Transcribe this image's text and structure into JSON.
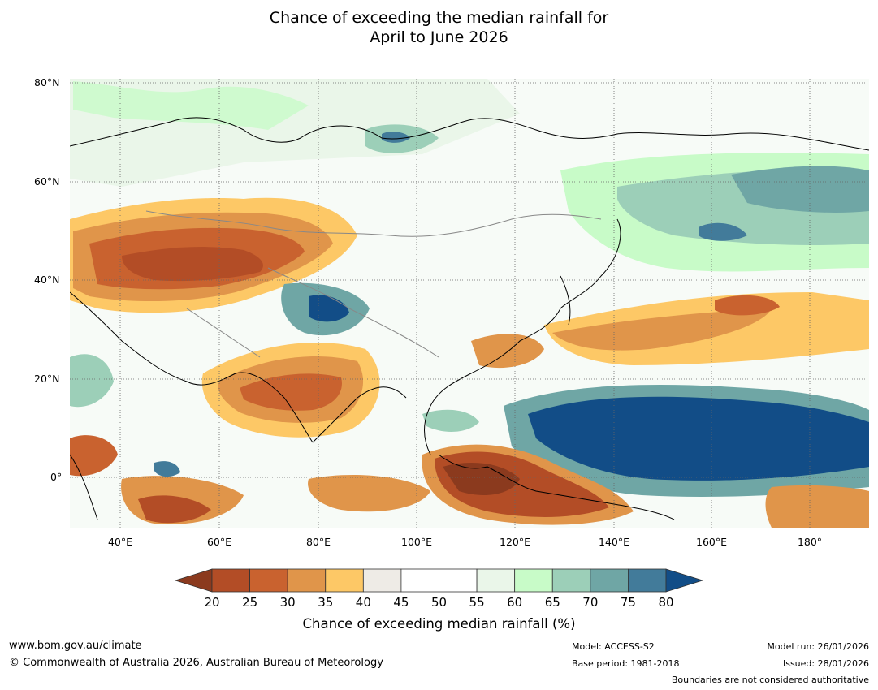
{
  "title": {
    "line1": "Chance of exceeding the median rainfall for",
    "line2": "April to June 2026"
  },
  "map": {
    "lat_labels": [
      "80°N",
      "60°N",
      "40°N",
      "20°N",
      "0°"
    ],
    "lon_labels": [
      "40°E",
      "60°E",
      "80°E",
      "100°E",
      "120°E",
      "140°E",
      "160°E",
      "180°"
    ],
    "palette": [
      "#8b3a1e",
      "#b34d26",
      "#c9622f",
      "#e0954a",
      "#fdc866",
      "#eeebe6",
      "#ffffff",
      "#ffffff",
      "#eaf6e9",
      "#c8fbc8",
      "#9ccfb8",
      "#6fa6a5",
      "#427b9a",
      "#124d87"
    ]
  },
  "colorbar": {
    "ticks": [
      "20",
      "25",
      "30",
      "35",
      "40",
      "45",
      "50",
      "55",
      "60",
      "65",
      "70",
      "75",
      "80"
    ],
    "label": "Chance of exceeding median rainfall (%)",
    "colors": {
      "below_min": "#8b3a1e",
      "bins": [
        "#b34d26",
        "#c9622f",
        "#e0954a",
        "#fdc866",
        "#eeebe6",
        "#ffffff",
        "#ffffff",
        "#eaf6e9",
        "#c8fbc8",
        "#9ccfb8",
        "#6fa6a5",
        "#427b9a"
      ],
      "above_max": "#124d87"
    }
  },
  "footer": {
    "website": "www.bom.gov.au/climate",
    "copyright": "© Commonwealth of Australia 2026, Australian Bureau of Meteorology",
    "model": "Model: ACCESS-S2",
    "base_period": "Base period: 1981-2018",
    "model_run": "Model run: 26/01/2026",
    "issued": "Issued: 28/01/2026",
    "boundaries": "Boundaries are not considered authoritative"
  }
}
